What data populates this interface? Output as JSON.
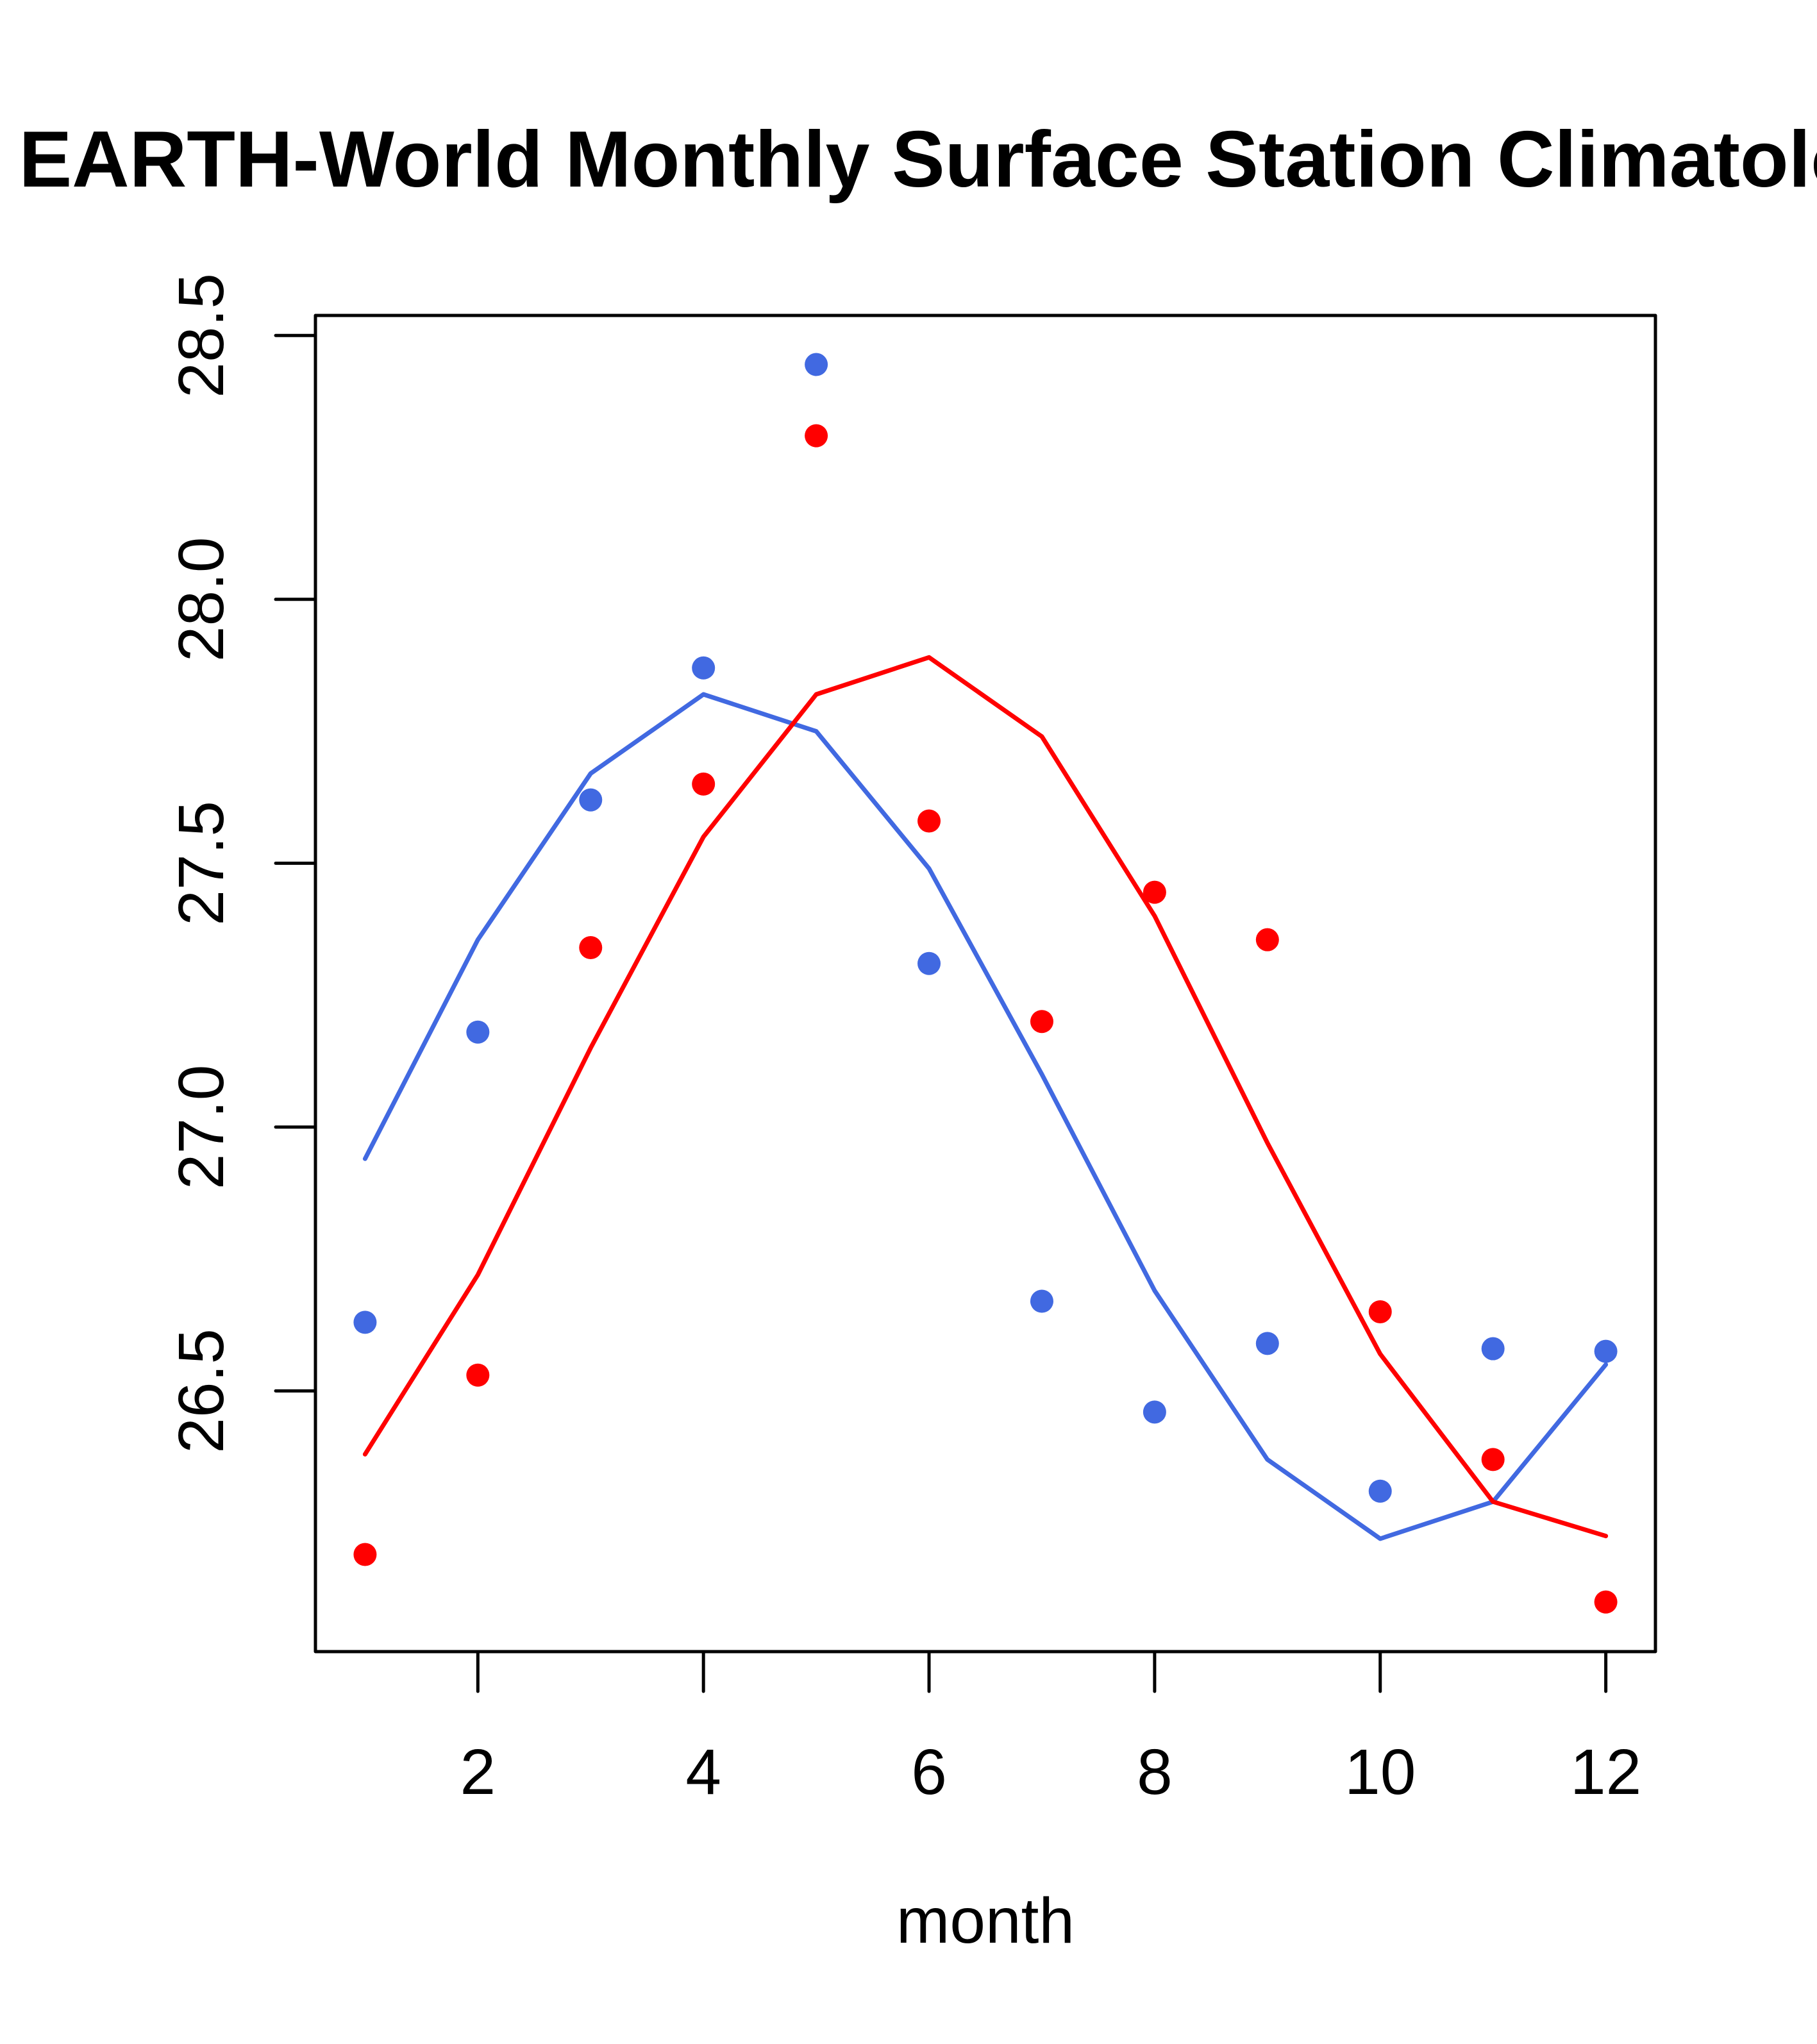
{
  "chart_data": {
    "type": "scatter",
    "title": "EARTH-World Monthly Surface Station Climatology",
    "xlabel": "month",
    "ylabel": "",
    "xlim": [
      0.56,
      12.44
    ],
    "ylim": [
      26.006,
      28.538
    ],
    "grid": false,
    "legend": null,
    "x": [
      1,
      2,
      3,
      4,
      5,
      6,
      7,
      8,
      9,
      10,
      11,
      12
    ],
    "x_ticks": [
      2,
      4,
      6,
      8,
      10,
      12
    ],
    "x_tick_labels": [
      "2",
      "4",
      "6",
      "8",
      "10",
      "12"
    ],
    "y_ticks": [
      26.5,
      27.0,
      27.5,
      28.0,
      28.5
    ],
    "y_tick_labels": [
      "26.5",
      "27.0",
      "27.5",
      "28.0",
      "28.5"
    ],
    "series": [
      {
        "name": "blue-points",
        "kind": "points",
        "color": "#4169E1",
        "values": [
          26.63,
          27.18,
          27.62,
          27.87,
          28.445,
          27.31,
          26.67,
          26.46,
          26.59,
          26.31,
          26.58,
          26.575
        ]
      },
      {
        "name": "red-points",
        "kind": "points",
        "color": "#FF0000",
        "values": [
          26.19,
          26.53,
          27.34,
          27.65,
          28.31,
          27.58,
          27.2,
          27.445,
          27.355,
          26.65,
          26.37,
          26.1
        ]
      },
      {
        "name": "blue-line",
        "kind": "line",
        "color": "#4169E1",
        "values": [
          26.94,
          27.355,
          27.67,
          27.82,
          27.75,
          27.49,
          27.1,
          26.69,
          26.37,
          26.22,
          26.29,
          26.55
        ]
      },
      {
        "name": "red-line",
        "kind": "line",
        "color": "#FF0000",
        "values": [
          26.38,
          26.72,
          27.15,
          27.55,
          27.82,
          27.89,
          27.74,
          27.4,
          26.97,
          26.57,
          26.29,
          26.225
        ]
      }
    ]
  }
}
